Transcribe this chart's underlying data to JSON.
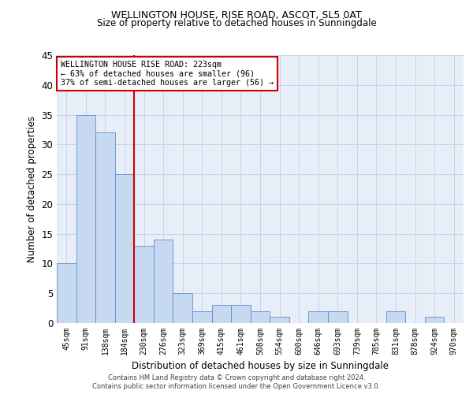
{
  "title1": "WELLINGTON HOUSE, RISE ROAD, ASCOT, SL5 0AT",
  "title2": "Size of property relative to detached houses in Sunningdale",
  "xlabel": "Distribution of detached houses by size in Sunningdale",
  "ylabel": "Number of detached properties",
  "categories": [
    "45sqm",
    "91sqm",
    "138sqm",
    "184sqm",
    "230sqm",
    "276sqm",
    "323sqm",
    "369sqm",
    "415sqm",
    "461sqm",
    "508sqm",
    "554sqm",
    "600sqm",
    "646sqm",
    "693sqm",
    "739sqm",
    "785sqm",
    "831sqm",
    "878sqm",
    "924sqm",
    "970sqm"
  ],
  "values": [
    10,
    35,
    32,
    25,
    13,
    14,
    5,
    2,
    3,
    3,
    2,
    1,
    0,
    2,
    2,
    0,
    0,
    2,
    0,
    1,
    0
  ],
  "bar_color": "#c6d9f1",
  "bar_edge_color": "#5b8fd4",
  "grid_color": "#c8d4e8",
  "background_color": "#e8eef8",
  "ref_line_color": "#cc0000",
  "annotation_text": "WELLINGTON HOUSE RISE ROAD: 223sqm\n← 63% of detached houses are smaller (96)\n37% of semi-detached houses are larger (56) →",
  "annotation_box_edge": "#cc0000",
  "ylim": [
    0,
    45
  ],
  "yticks": [
    0,
    5,
    10,
    15,
    20,
    25,
    30,
    35,
    40,
    45
  ],
  "footer1": "Contains HM Land Registry data © Crown copyright and database right 2024.",
  "footer2": "Contains public sector information licensed under the Open Government Licence v3.0."
}
